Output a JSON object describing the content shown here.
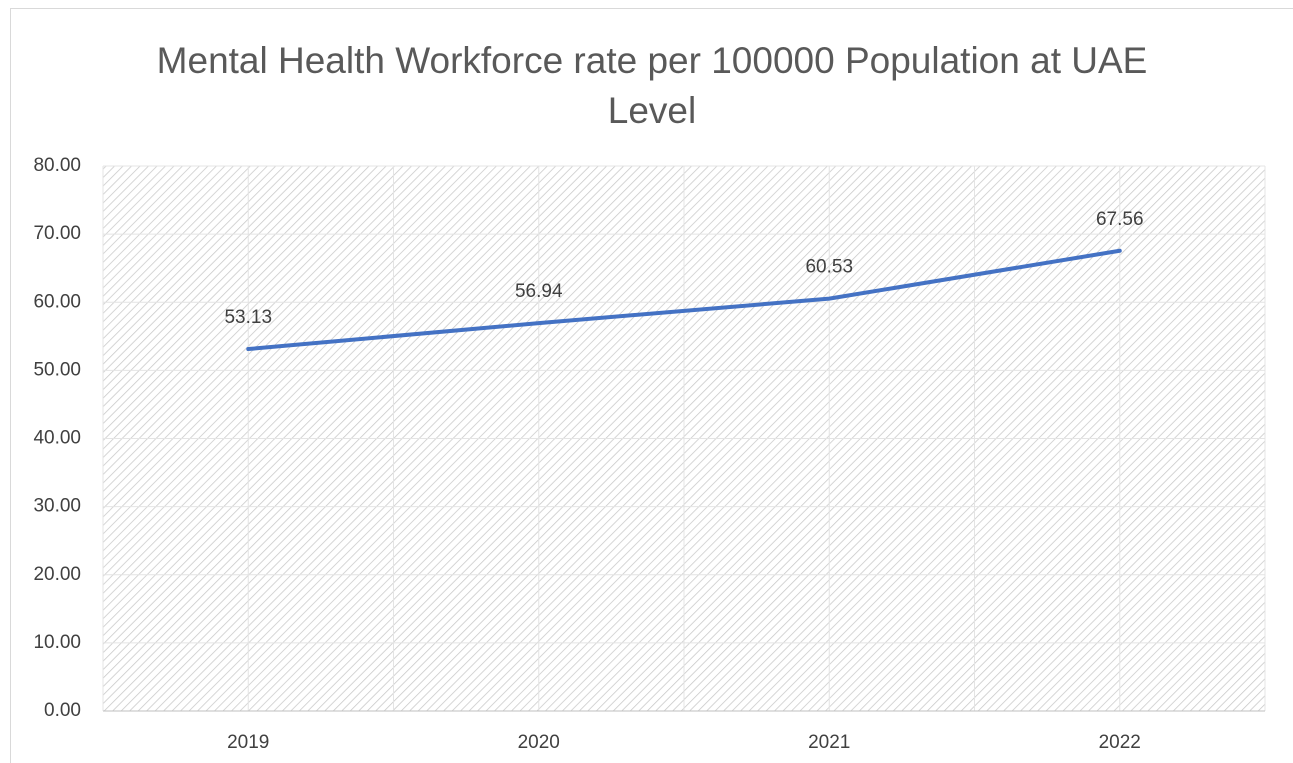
{
  "chart_data": {
    "type": "line",
    "title": "Mental Health Workforce rate per 100000 Population at UAE Level",
    "categories": [
      "2019",
      "2020",
      "2021",
      "2022"
    ],
    "series": [
      {
        "name": "Mental Health Workforce rate",
        "color": "#4472c4",
        "values": [
          53.13,
          56.94,
          60.53,
          67.56
        ]
      }
    ],
    "ylim": [
      0,
      80
    ],
    "yticks": [
      {
        "value": 0,
        "label": "0.00"
      },
      {
        "value": 10,
        "label": "10.00"
      },
      {
        "value": 20,
        "label": "20.00"
      },
      {
        "value": 30,
        "label": "30.00"
      },
      {
        "value": 40,
        "label": "40.00"
      },
      {
        "value": 50,
        "label": "50.00"
      },
      {
        "value": 60,
        "label": "60.00"
      },
      {
        "value": 70,
        "label": "70.00"
      },
      {
        "value": 80,
        "label": "80.00"
      }
    ],
    "grid": true
  }
}
